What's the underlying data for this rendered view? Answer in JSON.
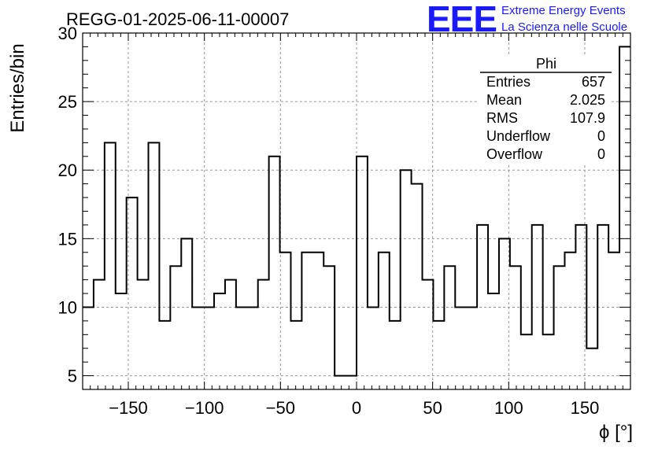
{
  "title": "REGG-01-2025-06-11-00007",
  "logo": {
    "text": "EEE",
    "line1": "Extreme Energy Events",
    "line2": "La Scienza nelle Scuole"
  },
  "stats": {
    "name": "Phi",
    "rows": [
      {
        "label": "Entries",
        "value": "657"
      },
      {
        "label": "Mean",
        "value": "2.025"
      },
      {
        "label": "RMS",
        "value": "107.9"
      },
      {
        "label": "Underflow",
        "value": "0"
      },
      {
        "label": "Overflow",
        "value": "0"
      }
    ]
  },
  "chart_data": {
    "type": "histogram",
    "xlabel": "ϕ [°]",
    "ylabel": "Entries/bin",
    "xlim": [
      -180,
      180
    ],
    "ylim": [
      4,
      30
    ],
    "bin_width": 7.2,
    "x_ticks": [
      -150,
      -100,
      -50,
      0,
      50,
      100,
      150
    ],
    "x_tick_labels": [
      "−150",
      "−100",
      "−50",
      "0",
      "50",
      "100",
      "150"
    ],
    "y_ticks": [
      5,
      10,
      15,
      20,
      25,
      30
    ],
    "y_tick_labels": [
      "5",
      "10",
      "15",
      "20",
      "25",
      "30"
    ],
    "grid": true,
    "legend": "stats box top-right",
    "values": [
      10,
      12,
      22,
      11,
      18,
      12,
      22,
      9,
      13,
      15,
      10,
      10,
      11,
      12,
      10,
      10,
      12,
      21,
      14,
      9,
      14,
      14,
      13,
      5,
      5,
      21,
      10,
      14,
      9,
      20,
      19,
      12,
      9,
      13,
      10,
      10,
      16,
      11,
      15,
      13,
      8,
      16,
      8,
      13,
      14,
      16,
      7,
      16,
      14,
      29
    ]
  }
}
